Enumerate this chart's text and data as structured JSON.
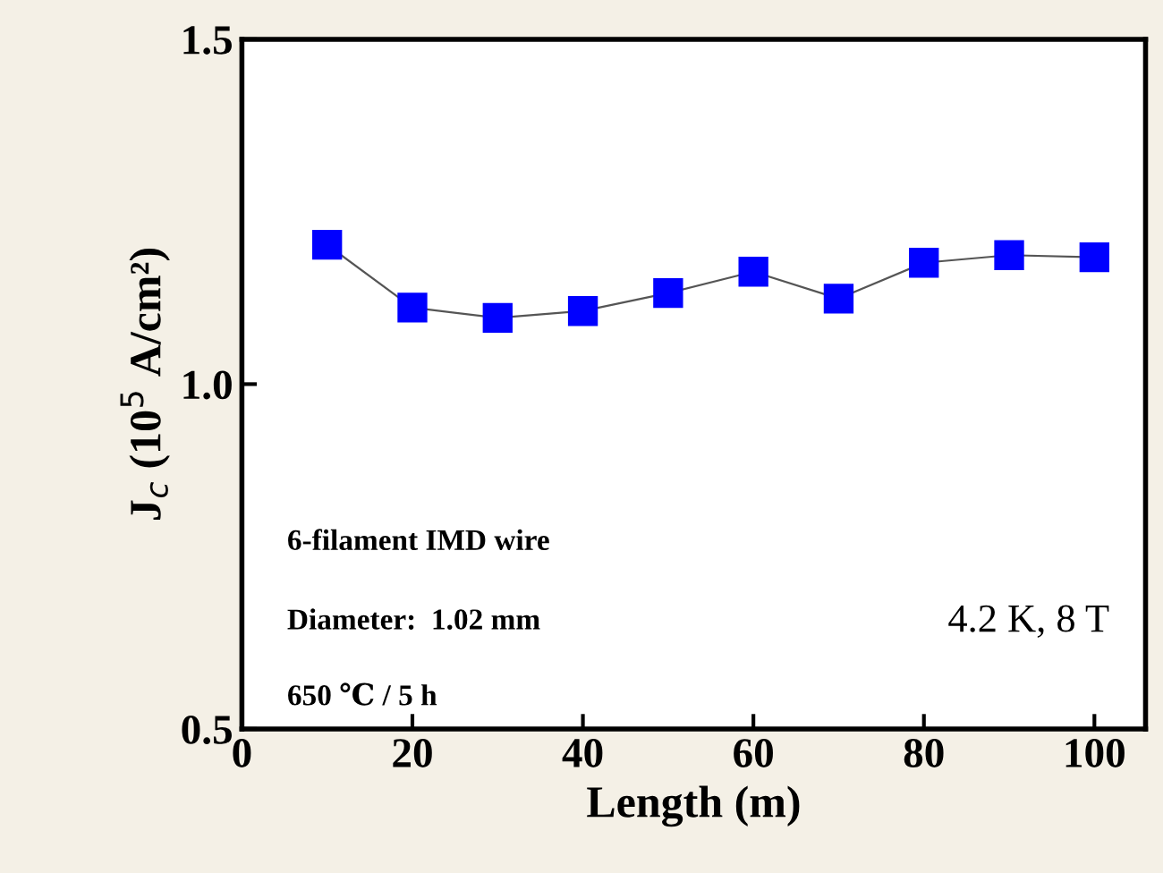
{
  "chart_data": {
    "type": "line",
    "xlabel": "Length (m)",
    "ylabel": "J$_{c}$ (10$^{5}$ A/cm²)",
    "x": [
      10,
      20,
      30,
      40,
      50,
      60,
      70,
      80,
      90,
      100
    ],
    "series": [
      {
        "color": "#0000ff",
        "values": [
          1.202,
          1.111,
          1.096,
          1.106,
          1.132,
          1.163,
          1.124,
          1.176,
          1.187,
          1.184
        ]
      }
    ],
    "xlim": [
      0,
      106
    ],
    "ylim": [
      0.5,
      1.5
    ],
    "xticks": [
      0,
      20,
      40,
      60,
      80,
      100
    ],
    "yticks": [
      {
        "value": 0.5,
        "label": "0.5"
      },
      {
        "value": 1.0,
        "label": "1.0"
      },
      {
        "value": 1.5,
        "label": "1.5"
      }
    ],
    "marker": "square",
    "line_style": "solid",
    "grid": false,
    "legend": false,
    "annotations": [
      "6-filament IMD wire",
      "Diameter:  1.02 mm",
      "650 ℃ / 5 h",
      "4.2 K, 8 T"
    ]
  }
}
